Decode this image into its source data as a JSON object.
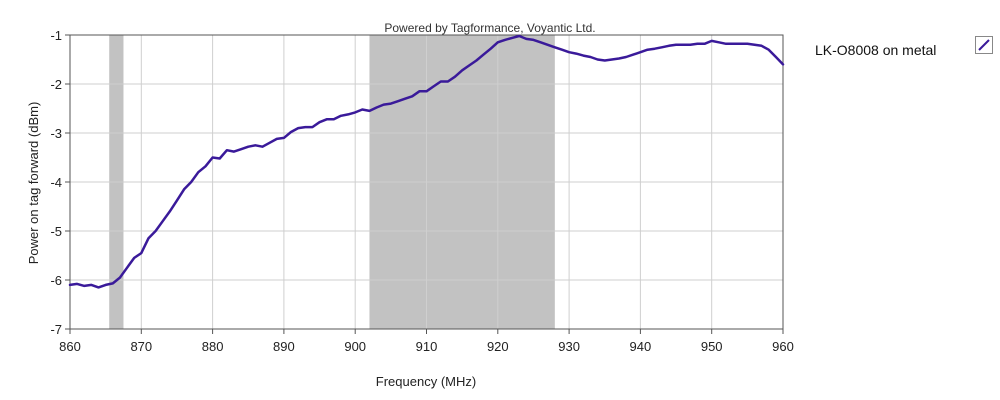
{
  "chart_data": {
    "type": "line",
    "title": "",
    "watermark": "Powered by Tagformance, Voyantic Ltd.",
    "xlabel": "Frequency (MHz)",
    "ylabel": "Power on tag forward (dBm)",
    "xlim": [
      860,
      960
    ],
    "ylim": [
      -7,
      -1
    ],
    "xticks": [
      860,
      870,
      880,
      890,
      900,
      910,
      920,
      930,
      940,
      950,
      960
    ],
    "yticks": [
      -1,
      -2,
      -3,
      -4,
      -5,
      -6,
      -7
    ],
    "grid": true,
    "legend_position": "right",
    "shaded_bands": [
      {
        "from": 865.5,
        "to": 867.5
      },
      {
        "from": 902,
        "to": 928
      }
    ],
    "series": [
      {
        "name": "LK-O8008 on metal",
        "color": "#3a1a9a",
        "x": [
          860,
          861,
          862,
          863,
          864,
          865,
          866,
          867,
          868,
          869,
          870,
          871,
          872,
          873,
          874,
          875,
          876,
          877,
          878,
          879,
          880,
          881,
          882,
          883,
          884,
          885,
          886,
          887,
          888,
          889,
          890,
          891,
          892,
          893,
          894,
          895,
          896,
          897,
          898,
          899,
          900,
          901,
          902,
          903,
          904,
          905,
          906,
          907,
          908,
          909,
          910,
          911,
          912,
          913,
          914,
          915,
          916,
          917,
          918,
          919,
          920,
          921,
          922,
          923,
          924,
          925,
          926,
          927,
          928,
          929,
          930,
          931,
          932,
          933,
          934,
          935,
          936,
          937,
          938,
          939,
          940,
          941,
          942,
          943,
          944,
          945,
          946,
          947,
          948,
          949,
          950,
          951,
          952,
          953,
          954,
          955,
          956,
          957,
          958,
          959,
          960
        ],
        "y": [
          -6.1,
          -6.08,
          -6.12,
          -6.1,
          -6.15,
          -6.1,
          -6.07,
          -5.95,
          -5.75,
          -5.55,
          -5.45,
          -5.15,
          -5.0,
          -4.8,
          -4.6,
          -4.38,
          -4.15,
          -4.0,
          -3.8,
          -3.68,
          -3.5,
          -3.52,
          -3.35,
          -3.38,
          -3.33,
          -3.28,
          -3.25,
          -3.28,
          -3.2,
          -3.12,
          -3.1,
          -2.98,
          -2.9,
          -2.88,
          -2.88,
          -2.78,
          -2.72,
          -2.72,
          -2.65,
          -2.62,
          -2.58,
          -2.52,
          -2.55,
          -2.48,
          -2.42,
          -2.4,
          -2.35,
          -2.3,
          -2.25,
          -2.15,
          -2.15,
          -2.05,
          -1.95,
          -1.95,
          -1.85,
          -1.72,
          -1.62,
          -1.52,
          -1.4,
          -1.28,
          -1.15,
          -1.1,
          -1.06,
          -1.02,
          -1.08,
          -1.1,
          -1.15,
          -1.2,
          -1.25,
          -1.3,
          -1.35,
          -1.38,
          -1.42,
          -1.45,
          -1.5,
          -1.52,
          -1.5,
          -1.48,
          -1.45,
          -1.4,
          -1.35,
          -1.3,
          -1.28,
          -1.25,
          -1.22,
          -1.2,
          -1.2,
          -1.2,
          -1.18,
          -1.18,
          -1.12,
          -1.15,
          -1.18,
          -1.18,
          -1.18,
          -1.18,
          -1.2,
          -1.22,
          -1.3,
          -1.45,
          -1.6
        ]
      }
    ]
  }
}
